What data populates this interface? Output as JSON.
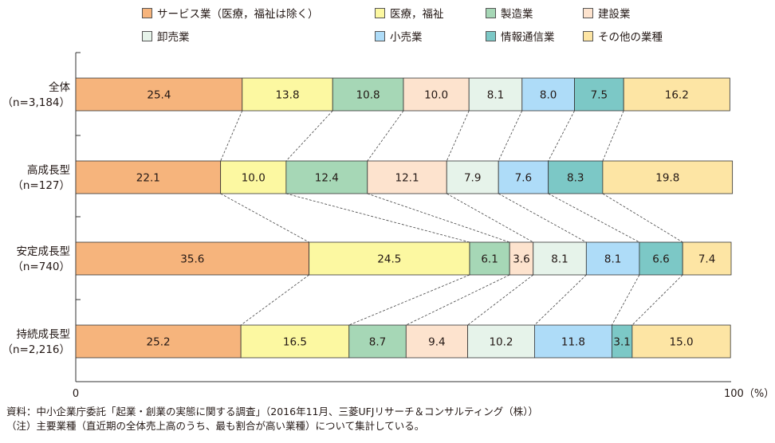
{
  "chart_data": {
    "type": "bar",
    "stacked": true,
    "orientation": "horizontal",
    "categories": [
      "全体\n（n=3,184）",
      "高成長型\n（n=127）",
      "安定成長型\n（n=740）",
      "持続成長型\n（n=2,216）"
    ],
    "series": [
      {
        "name": "サービス業（医療，福祉は除く）",
        "color": "#f6b47c",
        "values": [
          25.4,
          22.1,
          35.6,
          25.2
        ]
      },
      {
        "name": "医療，福祉",
        "color": "#fcf8a1",
        "values": [
          13.8,
          10.0,
          24.5,
          16.5
        ]
      },
      {
        "name": "製造業",
        "color": "#a6d7b6",
        "values": [
          10.8,
          12.4,
          6.1,
          8.7
        ]
      },
      {
        "name": "建設業",
        "color": "#fde3ce",
        "values": [
          10.0,
          12.1,
          3.6,
          9.4
        ]
      },
      {
        "name": "卸売業",
        "color": "#e6f3ea",
        "values": [
          8.1,
          7.9,
          8.1,
          10.2
        ]
      },
      {
        "name": "小売業",
        "color": "#aedcf8",
        "values": [
          8.0,
          7.6,
          8.1,
          11.8
        ]
      },
      {
        "name": "情報通信業",
        "color": "#7cc8c6",
        "values": [
          7.5,
          8.3,
          6.6,
          3.1
        ]
      },
      {
        "name": "その他の業種",
        "color": "#fde5a4",
        "values": [
          16.2,
          19.8,
          7.4,
          15.0
        ]
      }
    ],
    "xlim": [
      0,
      100
    ],
    "x_ticks": [
      "0",
      "100（%）"
    ],
    "legend_position": "top",
    "connector_lines": "dashed"
  },
  "footer": {
    "source": "資料：中小企業庁委託「起業・創業の実態に関する調査」（2016年11月、三菱UFJリサーチ＆コンサルティング（株））",
    "note": "（注）主要業種（直近期の全体売上高のうち、最も割合が高い業種）について集計している。"
  }
}
